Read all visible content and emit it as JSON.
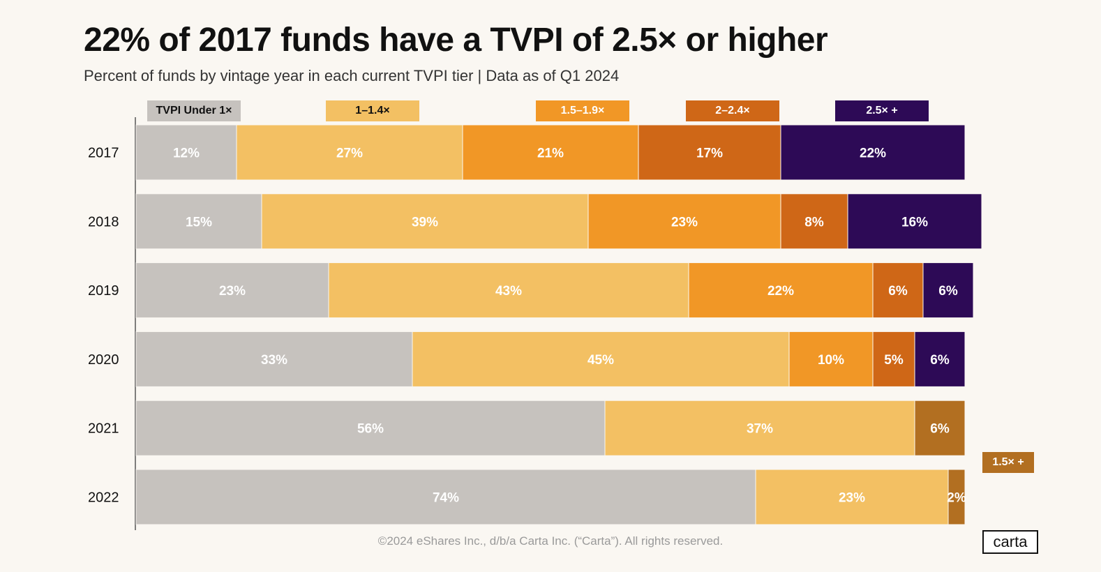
{
  "title": "22% of 2017 funds have a TVPI of 2.5× or higher",
  "subtitle": "Percent of funds by vintage year in each current TVPI tier  |  Data as of Q1 2024",
  "footer": "©2024 eShares Inc., d/b/a Carta Inc. (“Carta”). All rights reserved.",
  "logo_text": "carta",
  "colors": {
    "under1": "#c6c2be",
    "t1_14": "#f3c063",
    "t15_19": "#f19726",
    "t2_24": "#cf6717",
    "t25plus": "#2d0a56",
    "t15plus": "#b26f21"
  },
  "legend": [
    {
      "label": "TVPI Under 1×",
      "color": "#c6c2be"
    },
    {
      "label": "1–1.4×",
      "color": "#f3c063"
    },
    {
      "label": "1.5–1.9×",
      "color": "#f19726"
    },
    {
      "label": "2–2.4×",
      "color": "#cf6717"
    },
    {
      "label": "2.5× +",
      "color": "#2d0a56"
    }
  ],
  "legend_extra": {
    "label": "1.5× +",
    "color": "#b26f21"
  },
  "chart_data": {
    "type": "bar",
    "orientation": "horizontal",
    "stacked": true,
    "title": "22% of 2017 funds have a TVPI of 2.5× or higher",
    "subtitle": "Percent of funds by vintage year in each current TVPI tier  |  Data as of Q1 2024",
    "categories": [
      "2017",
      "2018",
      "2019",
      "2020",
      "2021",
      "2022"
    ],
    "xlim": [
      0,
      100
    ],
    "grid": false,
    "legend_position": "top",
    "series": [
      {
        "name": "TVPI Under 1×",
        "color": "#c6c2be",
        "values": [
          12,
          15,
          23,
          33,
          56,
          74
        ]
      },
      {
        "name": "1–1.4×",
        "color": "#f3c063",
        "values": [
          27,
          39,
          43,
          45,
          37,
          23
        ]
      },
      {
        "name": "1.5–1.9×",
        "color": "#f19726",
        "values": [
          21,
          23,
          22,
          10,
          null,
          null
        ]
      },
      {
        "name": "2–2.4×",
        "color": "#cf6717",
        "values": [
          17,
          8,
          6,
          5,
          null,
          null
        ]
      },
      {
        "name": "2.5× +",
        "color": "#2d0a56",
        "values": [
          22,
          16,
          6,
          6,
          null,
          null
        ]
      },
      {
        "name": "1.5× +",
        "color": "#b26f21",
        "values": [
          null,
          null,
          null,
          null,
          6,
          2
        ]
      }
    ]
  }
}
